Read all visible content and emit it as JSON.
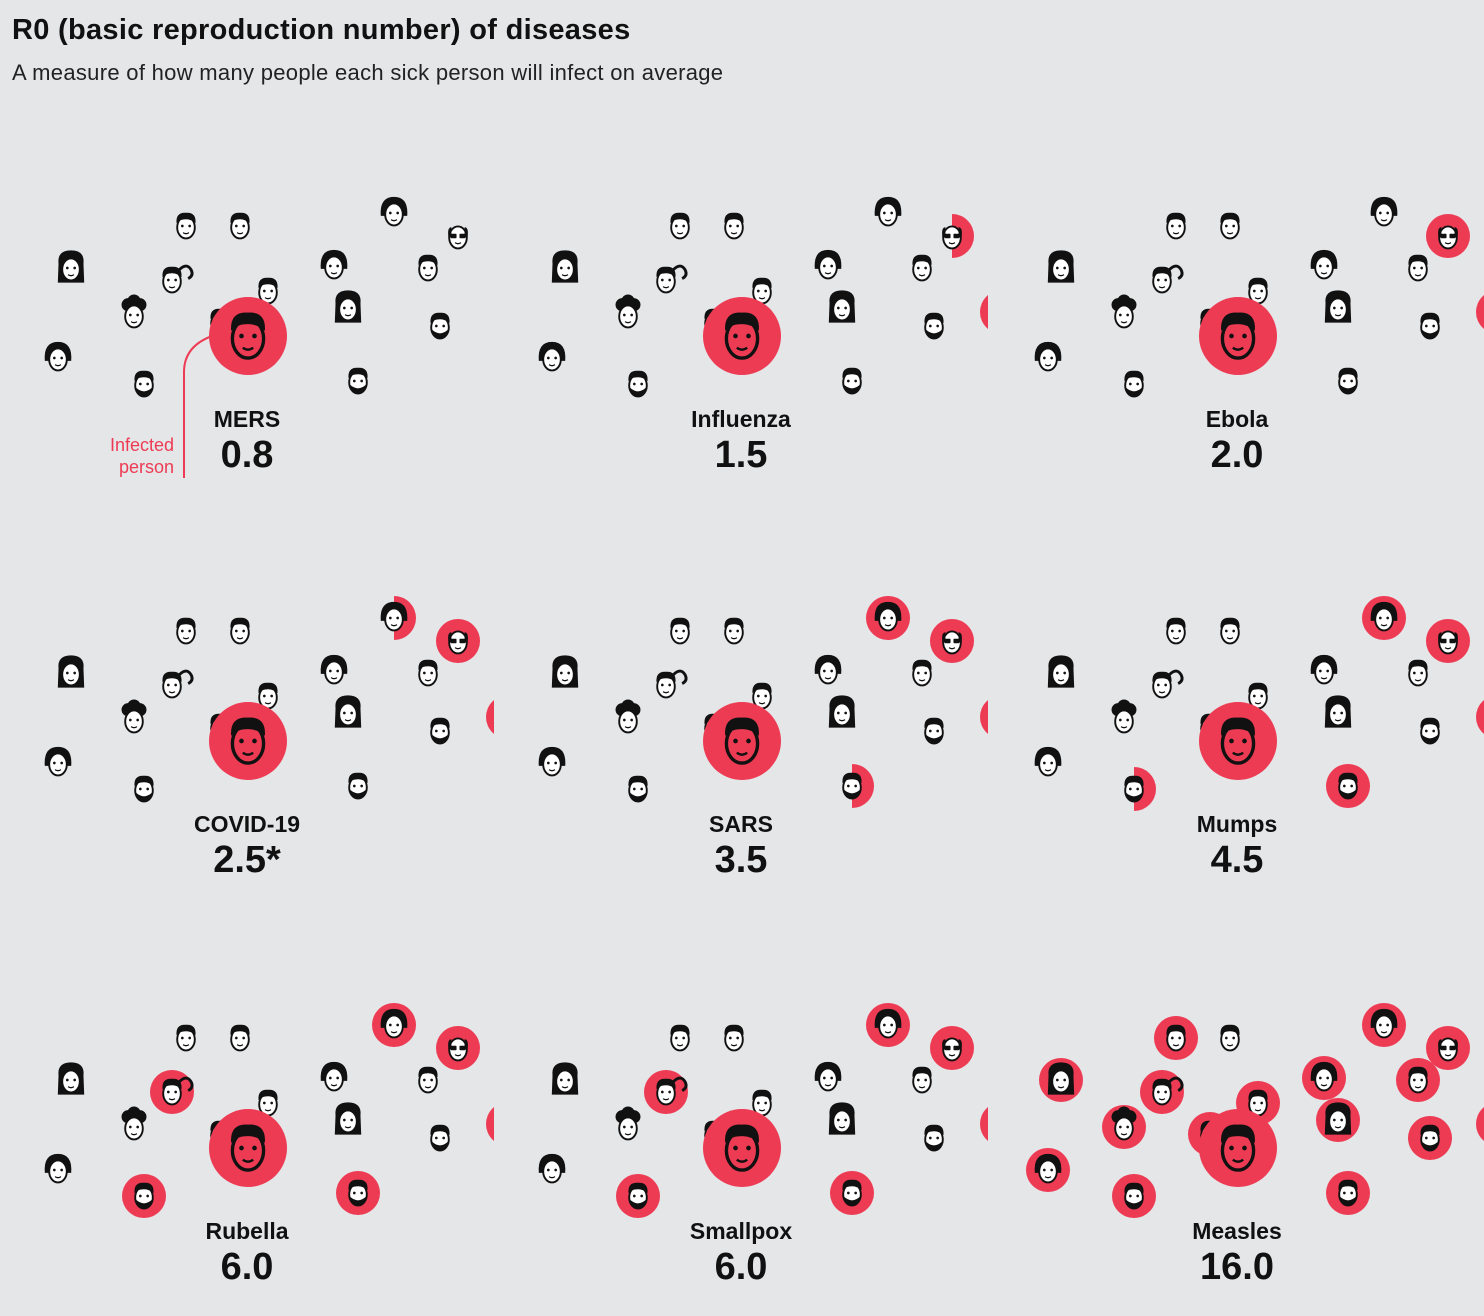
{
  "header": {
    "title": "R0 (basic reproduction number) of diseases",
    "subtitle": "A measure of how many people each sick person will infect on average"
  },
  "annotation": {
    "infected_label_line1": "Infected",
    "infected_label_line2": "person"
  },
  "colors": {
    "infected": "#ee3b54",
    "face": "#ffffff",
    "ink": "#111111",
    "background": "#e4e6e8",
    "callout": "#ee3b54"
  },
  "chart_data": {
    "type": "pictogram",
    "title": "R0 (basic reproduction number) of diseases",
    "subtitle": "A measure of how many people each sick person will infect on average",
    "diseases": [
      {
        "name": "MERS",
        "label": "0.8",
        "value": 0.8
      },
      {
        "name": "Influenza",
        "label": "1.5",
        "value": 1.5
      },
      {
        "name": "Ebola",
        "label": "2.0",
        "value": 2.0
      },
      {
        "name": "COVID-19",
        "label": "2.5*",
        "value": 2.5
      },
      {
        "name": "SARS",
        "label": "3.5",
        "value": 3.5
      },
      {
        "name": "Mumps",
        "label": "4.5",
        "value": 4.5
      },
      {
        "name": "Rubella",
        "label": "6.0",
        "value": 6.0
      },
      {
        "name": "Smallpox",
        "label": "6.0",
        "value": 6.0
      },
      {
        "name": "Measles",
        "label": "16.0",
        "value": 16.0
      }
    ]
  }
}
